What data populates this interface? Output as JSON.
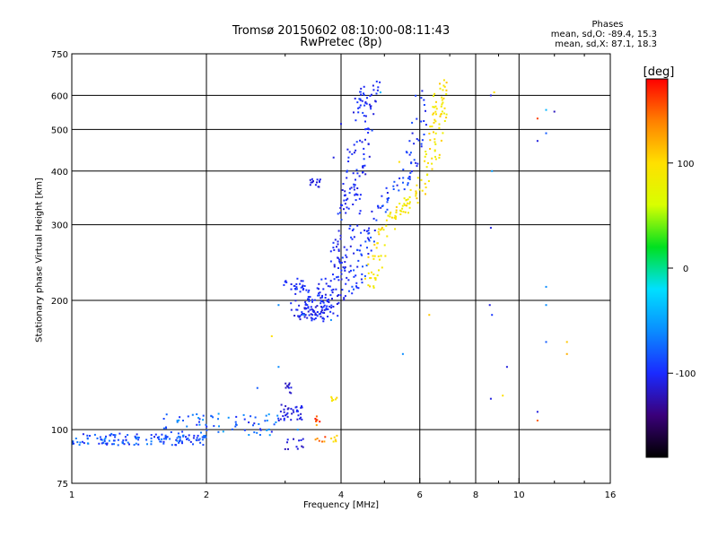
{
  "header": {
    "title": "Tromsø 20150602 08:10:00-08:11:43",
    "subtitle": "RwPretec (8p)",
    "phases_title": "Phases",
    "phases_o": "mean, sd,O: -89.4, 15.3",
    "phases_x": "mean, sd,X:  87.1, 18.3"
  },
  "colorbar": {
    "label": "[deg]",
    "range": [
      -180,
      180
    ],
    "ticks": [
      {
        "value": 100,
        "label": "100"
      },
      {
        "value": 0,
        "label": "0"
      },
      {
        "value": -100,
        "label": "-100"
      }
    ],
    "colors": [
      "#000000",
      "#3a007a",
      "#1a2aff",
      "#0a8cff",
      "#00e0ff",
      "#00e020",
      "#d8ff00",
      "#ffe000",
      "#ff8000",
      "#ff0000"
    ]
  },
  "chart_data": {
    "type": "scatter",
    "title": "Tromsø 20150602 08:10:00-08:11:43",
    "subtitle": "RwPretec (8p)",
    "xlabel": "Frequency [MHz]",
    "ylabel": "Stationary phase Virtual Height [km]",
    "xscale": "log",
    "yscale": "log",
    "xlim": [
      1,
      16
    ],
    "ylim": [
      75,
      750
    ],
    "xticks": [
      {
        "value": 1,
        "label": "1"
      },
      {
        "value": 2,
        "label": "2"
      },
      {
        "value": 4,
        "label": "4"
      },
      {
        "value": 6,
        "label": "6"
      },
      {
        "value": 8,
        "label": "8"
      },
      {
        "value": 10,
        "label": "10"
      },
      {
        "value": 16,
        "label": "16"
      }
    ],
    "yticks": [
      {
        "value": 75,
        "label": "75"
      },
      {
        "value": 100,
        "label": "100"
      },
      {
        "value": 200,
        "label": "200"
      },
      {
        "value": 300,
        "label": "300"
      },
      {
        "value": 400,
        "label": "400"
      },
      {
        "value": 500,
        "label": "500"
      },
      {
        "value": 600,
        "label": "600"
      },
      {
        "value": 750,
        "label": "750"
      }
    ],
    "grid": true,
    "color_encoding": "phase [deg]",
    "series": [
      {
        "traces": [
          {
            "x0": 1.0,
            "x1": 2.0,
            "y": 95,
            "jitter": 3,
            "n": 140,
            "ph": -85,
            "phj": 25
          },
          {
            "x0": 1.6,
            "x1": 2.9,
            "y": 103,
            "jitter": 6,
            "n": 70,
            "ph": -78,
            "phj": 30
          },
          {
            "x0": 2.9,
            "x1": 3.3,
            "y": 110,
            "jitter": 5,
            "n": 35,
            "ph": -110,
            "phj": 10
          },
          {
            "x0": 3.0,
            "x1": 3.1,
            "y": 125,
            "jitter": 4,
            "n": 10,
            "ph": -110,
            "phj": 10
          },
          {
            "x0": 3.0,
            "x1": 3.4,
            "y": 93,
            "jitter": 3,
            "n": 12,
            "ph": -112,
            "phj": 10
          },
          {
            "x0": 3.5,
            "x1": 3.6,
            "y": 105,
            "jitter": 3,
            "n": 8,
            "ph": 150,
            "phj": 25
          },
          {
            "x0": 3.5,
            "x1": 3.7,
            "y": 95,
            "jitter": 2,
            "n": 6,
            "ph": 140,
            "phj": 25
          },
          {
            "x0": 3.8,
            "x1": 3.95,
            "y": 95,
            "jitter": 2,
            "n": 6,
            "ph": 100,
            "phj": 10
          },
          {
            "x0": 3.8,
            "x1": 3.95,
            "y": 118,
            "jitter": 2,
            "n": 6,
            "ph": 100,
            "phj": 10
          },
          {
            "x0": 3.4,
            "x1": 3.6,
            "y": 375,
            "jitter": 8,
            "n": 14,
            "ph": -110,
            "phj": 8
          }
        ],
        "curves": [
          {
            "pts": [
              [
                3.25,
                195
              ],
              [
                3.35,
                188
              ],
              [
                3.5,
                185
              ],
              [
                3.7,
                190
              ],
              [
                3.85,
                205
              ],
              [
                4.0,
                240
              ],
              [
                4.2,
                330
              ],
              [
                4.4,
                450
              ],
              [
                4.6,
                640
              ]
            ],
            "n": 180,
            "spread": 0.06,
            "ph": -105,
            "phj": 12
          },
          {
            "pts": [
              [
                3.1,
                220
              ],
              [
                3.3,
                210
              ],
              [
                3.6,
                200
              ],
              [
                3.9,
                230
              ],
              [
                4.1,
                300
              ],
              [
                4.3,
                400
              ],
              [
                4.55,
                560
              ],
              [
                4.7,
                640
              ]
            ],
            "n": 160,
            "spread": 0.05,
            "ph": -100,
            "phj": 12
          },
          {
            "pts": [
              [
                4.0,
                195
              ],
              [
                4.3,
                220
              ],
              [
                4.5,
                260
              ],
              [
                4.7,
                310
              ],
              [
                5.0,
                340
              ],
              [
                5.5,
                380
              ],
              [
                5.9,
                470
              ],
              [
                6.1,
                640
              ]
            ],
            "n": 110,
            "spread": 0.04,
            "ph": -95,
            "phj": 15
          },
          {
            "pts": [
              [
                4.6,
                215
              ],
              [
                4.8,
                250
              ],
              [
                5.0,
                290
              ],
              [
                5.3,
                320
              ],
              [
                5.6,
                335
              ],
              [
                6.0,
                360
              ],
              [
                6.4,
                430
              ],
              [
                6.6,
                540
              ],
              [
                6.8,
                650
              ]
            ],
            "n": 160,
            "spread": 0.04,
            "ph": 95,
            "phj": 18
          }
        ],
        "scatter": [
          {
            "x": 8.65,
            "y": 600,
            "ph": -110
          },
          {
            "x": 8.8,
            "y": 610,
            "ph": 100
          },
          {
            "x": 8.7,
            "y": 400,
            "ph": -50
          },
          {
            "x": 8.65,
            "y": 295,
            "ph": -110
          },
          {
            "x": 8.6,
            "y": 195,
            "ph": -110
          },
          {
            "x": 8.7,
            "y": 185,
            "ph": -95
          },
          {
            "x": 8.65,
            "y": 118,
            "ph": -110
          },
          {
            "x": 9.2,
            "y": 120,
            "ph": 100
          },
          {
            "x": 9.4,
            "y": 140,
            "ph": -110
          },
          {
            "x": 11.0,
            "y": 530,
            "ph": 160
          },
          {
            "x": 11.0,
            "y": 470,
            "ph": -110
          },
          {
            "x": 11.5,
            "y": 490,
            "ph": -80
          },
          {
            "x": 11.5,
            "y": 555,
            "ph": -40
          },
          {
            "x": 12.0,
            "y": 550,
            "ph": -120
          },
          {
            "x": 11.5,
            "y": 215,
            "ph": -60
          },
          {
            "x": 11.5,
            "y": 195,
            "ph": -60
          },
          {
            "x": 11.5,
            "y": 160,
            "ph": -80
          },
          {
            "x": 12.8,
            "y": 160,
            "ph": 110
          },
          {
            "x": 12.8,
            "y": 150,
            "ph": 120
          },
          {
            "x": 11.0,
            "y": 110,
            "ph": -110
          },
          {
            "x": 11.0,
            "y": 105,
            "ph": 150
          },
          {
            "x": 6.3,
            "y": 185,
            "ph": 110
          },
          {
            "x": 4.9,
            "y": 610,
            "ph": -40
          },
          {
            "x": 5.5,
            "y": 150,
            "ph": -60
          },
          {
            "x": 5.4,
            "y": 420,
            "ph": 100
          },
          {
            "x": 2.9,
            "y": 195,
            "ph": -60
          },
          {
            "x": 3.1,
            "y": 190,
            "ph": -110
          },
          {
            "x": 3.3,
            "y": 185,
            "ph": -60
          },
          {
            "x": 2.8,
            "y": 165,
            "ph": 100
          },
          {
            "x": 3.8,
            "y": 180,
            "ph": -60
          },
          {
            "x": 3.85,
            "y": 430,
            "ph": -110
          },
          {
            "x": 4.0,
            "y": 515,
            "ph": -110
          },
          {
            "x": 4.3,
            "y": 590,
            "ph": -110
          },
          {
            "x": 2.6,
            "y": 125,
            "ph": -80
          },
          {
            "x": 2.9,
            "y": 140,
            "ph": -60
          },
          {
            "x": 3.2,
            "y": 100,
            "ph": -60
          }
        ]
      }
    ]
  }
}
